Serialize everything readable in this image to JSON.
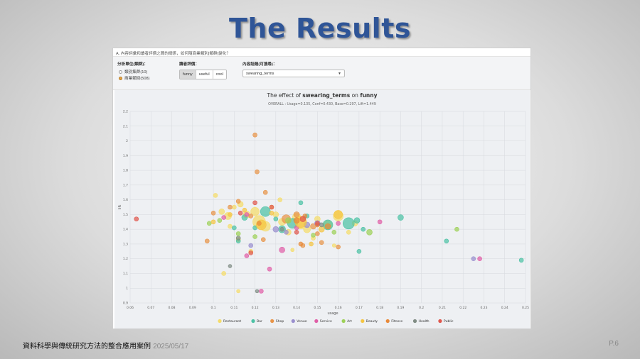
{
  "slide": {
    "title": "The Results",
    "footer_text": "資料科學與傳統研究方法的整合應用案例",
    "footer_date": "2025/05/17",
    "page": "P.6"
  },
  "app": {
    "question": "A. 內容詞彙和讀者評價之間的關係，如何隨商業類別[類群]變化？",
    "unit_label": "分析單位(類群)：",
    "unit_options": [
      {
        "label": "類別集群(10)",
        "selected": false
      },
      {
        "label": "商業類別(508)",
        "selected": true
      }
    ],
    "reader_label": "讀者評價：",
    "reader_buttons": [
      {
        "label": "funny",
        "active": true
      },
      {
        "label": "useful",
        "active": false
      },
      {
        "label": "cool",
        "active": false
      }
    ],
    "topic_label": "內容話題(可搜尋)：",
    "topic_value": "swearing_terms"
  },
  "chart_data": {
    "type": "scatter",
    "title_prefix": "The effect of ",
    "title_term": "swearing_terms",
    "title_mid": " on ",
    "title_rating": "funny",
    "subtitle": "OVERALL : Usage=0.135, Conf=0.430, Base=0.297, Lift=1.449",
    "xlabel": "usage",
    "ylabel": "lift",
    "xlim": [
      0.06,
      0.25
    ],
    "ylim": [
      0.9,
      2.2
    ],
    "xticks": [
      0.06,
      0.07,
      0.08,
      0.09,
      0.1,
      0.11,
      0.12,
      0.13,
      0.14,
      0.15,
      0.16,
      0.17,
      0.18,
      0.19,
      0.2,
      0.21,
      0.22,
      0.23,
      0.24,
      0.25
    ],
    "yticks": [
      0.9,
      1,
      1.1,
      1.2,
      1.3,
      1.4,
      1.5,
      1.6,
      1.7,
      1.8,
      1.9,
      2,
      2.1,
      2.2
    ],
    "grid": true,
    "legend_position": "bottom",
    "series": [
      {
        "name": "Restaurant",
        "color": "#f5dc6a",
        "points": [
          [
            0.101,
            1.63,
            3
          ],
          [
            0.104,
            1.52,
            4
          ],
          [
            0.107,
            1.49,
            5
          ],
          [
            0.11,
            1.55,
            3
          ],
          [
            0.113,
            1.57,
            4
          ],
          [
            0.116,
            1.5,
            5
          ],
          [
            0.12,
            1.52,
            6
          ],
          [
            0.122,
            1.45,
            9
          ],
          [
            0.125,
            1.42,
            7
          ],
          [
            0.128,
            1.55,
            3
          ],
          [
            0.13,
            1.5,
            4
          ],
          [
            0.133,
            1.45,
            5
          ],
          [
            0.136,
            1.38,
            4
          ],
          [
            0.14,
            1.48,
            6
          ],
          [
            0.142,
            1.44,
            8
          ],
          [
            0.145,
            1.4,
            5
          ],
          [
            0.148,
            1.34,
            3
          ],
          [
            0.15,
            1.47,
            4
          ],
          [
            0.155,
            1.43,
            6
          ],
          [
            0.16,
            1.49,
            7
          ],
          [
            0.165,
            1.38,
            3
          ],
          [
            0.168,
            1.44,
            4
          ],
          [
            0.105,
            1.1,
            3
          ],
          [
            0.112,
            0.98,
            2.5
          ],
          [
            0.118,
            1.25,
            3
          ],
          [
            0.132,
            1.6,
            3
          ],
          [
            0.138,
            1.26,
            2.5
          ],
          [
            0.158,
            1.29,
            2.5
          ],
          [
            0.112,
            1.33,
            3
          ],
          [
            0.108,
            1.42,
            3
          ]
        ]
      },
      {
        "name": "Bar",
        "color": "#4dc2a5",
        "points": [
          [
            0.11,
            1.41,
            3
          ],
          [
            0.115,
            1.48,
            4
          ],
          [
            0.12,
            1.41,
            3
          ],
          [
            0.125,
            1.52,
            7
          ],
          [
            0.133,
            1.4,
            5
          ],
          [
            0.138,
            1.44,
            7
          ],
          [
            0.142,
            1.58,
            3
          ],
          [
            0.155,
            1.43,
            7
          ],
          [
            0.165,
            1.44,
            8
          ],
          [
            0.169,
            1.46,
            4
          ],
          [
            0.172,
            1.4,
            3
          ],
          [
            0.19,
            1.48,
            4
          ],
          [
            0.212,
            1.32,
            3
          ],
          [
            0.248,
            1.19,
            3
          ],
          [
            0.13,
            1.47,
            3
          ],
          [
            0.145,
            1.49,
            3
          ],
          [
            0.112,
            1.32,
            3
          ],
          [
            0.17,
            1.25,
            3
          ]
        ]
      },
      {
        "name": "Shop",
        "color": "#e89448",
        "points": [
          [
            0.12,
            2.04,
            3
          ],
          [
            0.121,
            1.79,
            3
          ],
          [
            0.1,
            1.51,
            3
          ],
          [
            0.108,
            1.55,
            3
          ],
          [
            0.118,
            1.49,
            3
          ],
          [
            0.135,
            1.47,
            6
          ],
          [
            0.14,
            1.5,
            4
          ],
          [
            0.148,
            1.42,
            4
          ],
          [
            0.15,
            1.37,
            3
          ],
          [
            0.152,
            1.31,
            3
          ],
          [
            0.125,
            1.65,
            3
          ],
          [
            0.143,
            1.29,
            3
          ],
          [
            0.124,
            1.33,
            3
          ],
          [
            0.097,
            1.32,
            3
          ],
          [
            0.112,
            1.59,
            3
          ],
          [
            0.16,
            1.28,
            3
          ]
        ]
      },
      {
        "name": "Venue",
        "color": "#9a8fce",
        "points": [
          [
            0.13,
            1.4,
            4
          ],
          [
            0.135,
            1.38,
            3
          ],
          [
            0.145,
            1.43,
            4
          ],
          [
            0.15,
            1.44,
            4
          ],
          [
            0.118,
            1.29,
            3
          ],
          [
            0.225,
            1.2,
            3
          ]
        ]
      },
      {
        "name": "Service",
        "color": "#e05fa7",
        "points": [
          [
            0.105,
            1.48,
            3
          ],
          [
            0.116,
            1.5,
            3
          ],
          [
            0.116,
            1.22,
            3
          ],
          [
            0.123,
            0.98,
            3
          ],
          [
            0.127,
            1.13,
            3
          ],
          [
            0.133,
            1.26,
            4
          ],
          [
            0.14,
            1.41,
            3
          ],
          [
            0.16,
            1.44,
            3
          ],
          [
            0.18,
            1.45,
            3
          ],
          [
            0.228,
            1.2,
            3
          ]
        ]
      },
      {
        "name": "Art",
        "color": "#9ed158",
        "points": [
          [
            0.098,
            1.44,
            3
          ],
          [
            0.103,
            1.46,
            3
          ],
          [
            0.112,
            1.37,
            3
          ],
          [
            0.136,
            1.46,
            4
          ],
          [
            0.158,
            1.38,
            3
          ],
          [
            0.175,
            1.38,
            4
          ],
          [
            0.217,
            1.4,
            3
          ],
          [
            0.12,
            1.35,
            3
          ],
          [
            0.148,
            1.36,
            3
          ]
        ]
      },
      {
        "name": "Beauty",
        "color": "#f5c542",
        "points": [
          [
            0.1,
            1.45,
            3
          ],
          [
            0.115,
            1.53,
            3
          ],
          [
            0.123,
            1.43,
            7
          ],
          [
            0.128,
            1.51,
            3
          ],
          [
            0.142,
            1.45,
            8
          ],
          [
            0.152,
            1.4,
            4
          ],
          [
            0.16,
            1.5,
            6
          ],
          [
            0.108,
            1.5,
            3
          ],
          [
            0.147,
            1.3,
            3
          ]
        ]
      },
      {
        "name": "Fitness",
        "color": "#e88a3a",
        "points": [
          [
            0.14,
            1.46,
            4
          ],
          [
            0.144,
            1.49,
            3
          ],
          [
            0.15,
            1.43,
            3
          ],
          [
            0.155,
            1.42,
            4
          ],
          [
            0.142,
            1.3,
            3
          ],
          [
            0.122,
            1.44,
            3
          ]
        ]
      },
      {
        "name": "Health",
        "color": "#808c84",
        "points": [
          [
            0.108,
            1.15,
            2.5
          ],
          [
            0.121,
            0.98,
            2.5
          ],
          [
            0.133,
            1.4,
            3
          ],
          [
            0.152,
            1.43,
            3
          ],
          [
            0.112,
            1.34,
            3
          ]
        ]
      },
      {
        "name": "Public",
        "color": "#e0574d",
        "points": [
          [
            0.063,
            1.47,
            3
          ],
          [
            0.113,
            1.51,
            3
          ],
          [
            0.12,
            1.58,
            3
          ],
          [
            0.128,
            1.55,
            3
          ],
          [
            0.143,
            1.47,
            4
          ],
          [
            0.15,
            1.44,
            3
          ],
          [
            0.14,
            1.38,
            3
          ],
          [
            0.118,
            1.24,
            3
          ]
        ]
      }
    ]
  }
}
